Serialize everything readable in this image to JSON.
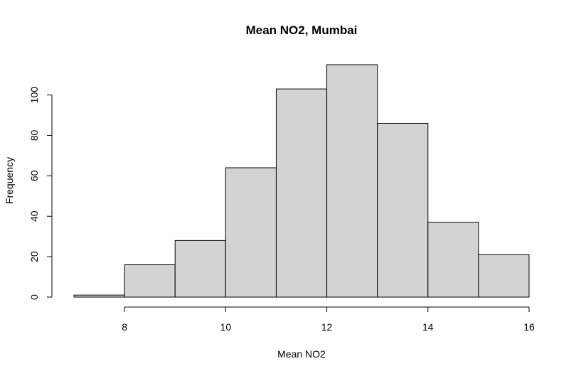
{
  "chart_data": {
    "type": "bar",
    "title": "Mean NO2, Mumbai",
    "xlabel": "Mean NO2",
    "ylabel": "Frequency",
    "bins": [
      {
        "from": 7,
        "to": 8,
        "count": 1
      },
      {
        "from": 8,
        "to": 9,
        "count": 16
      },
      {
        "from": 9,
        "to": 10,
        "count": 28
      },
      {
        "from": 10,
        "to": 11,
        "count": 64
      },
      {
        "from": 11,
        "to": 12,
        "count": 103
      },
      {
        "from": 12,
        "to": 13,
        "count": 115
      },
      {
        "from": 13,
        "to": 14,
        "count": 86
      },
      {
        "from": 14,
        "to": 15,
        "count": 37
      },
      {
        "from": 15,
        "to": 16,
        "count": 21
      }
    ],
    "xticks": [
      "8",
      "10",
      "12",
      "14",
      "16"
    ],
    "yticks": [
      "0",
      "20",
      "40",
      "60",
      "80",
      "100"
    ],
    "xlim": [
      7,
      16
    ],
    "ylim": [
      0,
      115
    ],
    "grid": false,
    "bar_color": "#d3d3d3",
    "edge_color": "#000000"
  }
}
